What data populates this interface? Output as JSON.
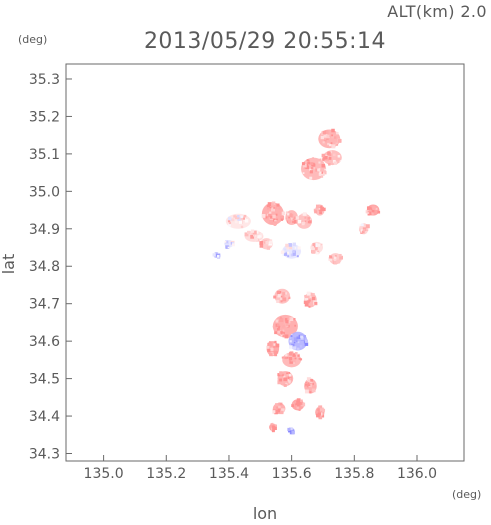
{
  "chart_data": {
    "type": "heatmap",
    "title": "2013/05/29 20:55:14",
    "altitude_label": "ALT(km) 2.0",
    "xlabel": "lon",
    "ylabel": "lat",
    "x_unit": "(deg)",
    "y_unit": "(deg)",
    "xlim": [
      134.88,
      136.15
    ],
    "ylim": [
      34.28,
      35.34
    ],
    "x_ticks": [
      {
        "value": 135.0,
        "label": "135.0"
      },
      {
        "value": 135.2,
        "label": "135.2"
      },
      {
        "value": 135.4,
        "label": "135.4"
      },
      {
        "value": 135.6,
        "label": "135.6"
      },
      {
        "value": 135.8,
        "label": "135.8"
      },
      {
        "value": 136.0,
        "label": "136.0"
      }
    ],
    "y_ticks": [
      {
        "value": 34.3,
        "label": "34.3"
      },
      {
        "value": 34.4,
        "label": "34.4"
      },
      {
        "value": 34.5,
        "label": "34.5"
      },
      {
        "value": 34.6,
        "label": "34.6"
      },
      {
        "value": 34.7,
        "label": "34.7"
      },
      {
        "value": 34.8,
        "label": "34.8"
      },
      {
        "value": 34.9,
        "label": "34.9"
      },
      {
        "value": 35.0,
        "label": "35.0"
      },
      {
        "value": 35.1,
        "label": "35.1"
      },
      {
        "value": 35.2,
        "label": "35.2"
      },
      {
        "value": 35.3,
        "label": "35.3"
      }
    ],
    "grid": false,
    "colors": {
      "positive": "#f08c8c",
      "negative": "#7a7af0",
      "axis": "#6a6a6a"
    },
    "clusters": [
      {
        "lon": 135.72,
        "lat": 35.14,
        "rx": 0.035,
        "ry": 0.025,
        "value": 0.75
      },
      {
        "lon": 135.67,
        "lat": 35.06,
        "rx": 0.04,
        "ry": 0.03,
        "value": 0.7
      },
      {
        "lon": 135.73,
        "lat": 35.09,
        "rx": 0.03,
        "ry": 0.02,
        "value": 0.65
      },
      {
        "lon": 135.86,
        "lat": 34.95,
        "rx": 0.02,
        "ry": 0.015,
        "value": 0.9
      },
      {
        "lon": 135.83,
        "lat": 34.9,
        "rx": 0.015,
        "ry": 0.015,
        "value": 0.4
      },
      {
        "lon": 135.54,
        "lat": 34.94,
        "rx": 0.035,
        "ry": 0.03,
        "value": 0.8
      },
      {
        "lon": 135.6,
        "lat": 34.93,
        "rx": 0.02,
        "ry": 0.02,
        "value": 0.7
      },
      {
        "lon": 135.64,
        "lat": 34.92,
        "rx": 0.025,
        "ry": 0.02,
        "value": 0.6
      },
      {
        "lon": 135.69,
        "lat": 34.95,
        "rx": 0.015,
        "ry": 0.015,
        "value": 0.65
      },
      {
        "lon": 135.43,
        "lat": 34.92,
        "rx": 0.04,
        "ry": 0.02,
        "value": 0.25
      },
      {
        "lon": 135.48,
        "lat": 34.88,
        "rx": 0.03,
        "ry": 0.015,
        "value": 0.35
      },
      {
        "lon": 135.52,
        "lat": 34.86,
        "rx": 0.02,
        "ry": 0.015,
        "value": 0.5
      },
      {
        "lon": 135.4,
        "lat": 34.86,
        "rx": 0.015,
        "ry": 0.01,
        "value": -0.2
      },
      {
        "lon": 135.36,
        "lat": 34.83,
        "rx": 0.01,
        "ry": 0.008,
        "value": -0.5
      },
      {
        "lon": 135.6,
        "lat": 34.84,
        "rx": 0.03,
        "ry": 0.02,
        "value": -0.2
      },
      {
        "lon": 135.68,
        "lat": 34.85,
        "rx": 0.02,
        "ry": 0.015,
        "value": 0.3
      },
      {
        "lon": 135.74,
        "lat": 34.82,
        "rx": 0.02,
        "ry": 0.015,
        "value": 0.5
      },
      {
        "lon": 135.57,
        "lat": 34.72,
        "rx": 0.025,
        "ry": 0.02,
        "value": 0.6
      },
      {
        "lon": 135.66,
        "lat": 34.71,
        "rx": 0.02,
        "ry": 0.02,
        "value": 0.7
      },
      {
        "lon": 135.58,
        "lat": 34.64,
        "rx": 0.04,
        "ry": 0.03,
        "value": 0.8
      },
      {
        "lon": 135.62,
        "lat": 34.6,
        "rx": 0.03,
        "ry": 0.025,
        "value": -0.6
      },
      {
        "lon": 135.54,
        "lat": 34.58,
        "rx": 0.02,
        "ry": 0.02,
        "value": 0.85
      },
      {
        "lon": 135.6,
        "lat": 34.55,
        "rx": 0.03,
        "ry": 0.02,
        "value": 0.7
      },
      {
        "lon": 135.58,
        "lat": 34.5,
        "rx": 0.025,
        "ry": 0.02,
        "value": 0.75
      },
      {
        "lon": 135.66,
        "lat": 34.48,
        "rx": 0.02,
        "ry": 0.02,
        "value": 0.8
      },
      {
        "lon": 135.62,
        "lat": 34.43,
        "rx": 0.02,
        "ry": 0.015,
        "value": 0.9
      },
      {
        "lon": 135.56,
        "lat": 34.42,
        "rx": 0.02,
        "ry": 0.015,
        "value": 0.8
      },
      {
        "lon": 135.69,
        "lat": 34.41,
        "rx": 0.015,
        "ry": 0.015,
        "value": 0.85
      },
      {
        "lon": 135.54,
        "lat": 34.37,
        "rx": 0.012,
        "ry": 0.01,
        "value": 0.9
      },
      {
        "lon": 135.6,
        "lat": 34.36,
        "rx": 0.01,
        "ry": 0.008,
        "value": -0.7
      }
    ]
  }
}
